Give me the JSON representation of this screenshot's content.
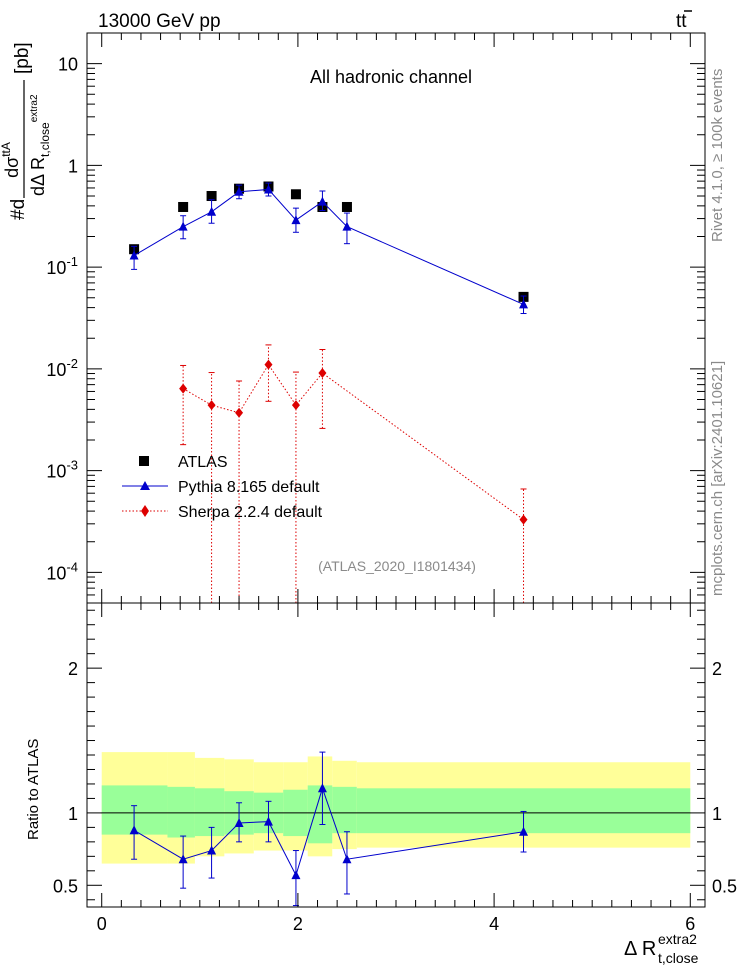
{
  "header": {
    "energy_label": "13000 GeV pp",
    "process_label": "tt̄",
    "rivet_label": "Rivet 4.1.0, ≥ 100k events",
    "mcplots_label": "mcplots.cern.ch [arXiv:2401.10621]"
  },
  "main_panel": {
    "title": "All hadronic channel",
    "analysis_label": "(ATLAS_2020_I1801434)",
    "ylabel_numerator": "#d dσ^ttA",
    "ylabel_text": "dσ / dΔR_t,close^extra2 [pb]",
    "legend": {
      "atlas": "ATLAS",
      "pythia": "Pythia 8.165 default",
      "sherpa": "Sherpa 2.2.4 default"
    }
  },
  "ratio_panel": {
    "ylabel": "Ratio to ATLAS"
  },
  "xaxis": {
    "label_main": "Δ R",
    "label_sup": "extra2",
    "label_sub": "t,close"
  },
  "colors": {
    "atlas": "#000000",
    "pythia": "#0000cc",
    "sherpa": "#dd0000",
    "band_inner": "#99ff99",
    "band_outer": "#ffff99"
  },
  "chart_data": [
    {
      "type": "scatter",
      "panel": "main",
      "yscale": "log",
      "xlim": [
        -0.15,
        6.15
      ],
      "ylim": [
        5e-05,
        20
      ],
      "ytick_labels": [
        "10^-4",
        "10^-3",
        "10^-2",
        "10^-1",
        "1",
        "10"
      ],
      "xlabel": "Δ R t,close extra2",
      "series": [
        {
          "name": "ATLAS",
          "marker": "square",
          "x": [
            0.33,
            0.83,
            1.12,
            1.4,
            1.7,
            1.98,
            2.25,
            2.5,
            4.3
          ],
          "y": [
            0.15,
            0.39,
            0.5,
            0.59,
            0.62,
            0.52,
            0.39,
            0.39,
            0.051
          ]
        },
        {
          "name": "Pythia 8.165 default",
          "marker": "triangle",
          "x": [
            0.33,
            0.83,
            1.12,
            1.4,
            1.7,
            1.98,
            2.25,
            2.5,
            4.3
          ],
          "y": [
            0.13,
            0.25,
            0.35,
            0.55,
            0.58,
            0.29,
            0.44,
            0.25,
            0.043
          ],
          "yerr_low": [
            0.095,
            0.19,
            0.27,
            0.47,
            0.5,
            0.22,
            0.36,
            0.17,
            0.035
          ],
          "yerr_high": [
            0.16,
            0.32,
            0.46,
            0.64,
            0.67,
            0.38,
            0.56,
            0.34,
            0.052
          ]
        },
        {
          "name": "Sherpa 2.2.4 default",
          "marker": "diamond",
          "x": [
            0.83,
            1.12,
            1.4,
            1.7,
            1.98,
            2.25,
            4.3
          ],
          "y": [
            0.0064,
            0.0044,
            0.0037,
            0.011,
            0.0044,
            0.0091,
            0.00033
          ],
          "yerr_low": [
            0.0018,
            1e-05,
            1e-05,
            0.0048,
            1e-05,
            0.0026,
            1e-05
          ],
          "yerr_high": [
            0.0108,
            0.0092,
            0.0076,
            0.0172,
            0.0093,
            0.0155,
            0.00066
          ]
        }
      ]
    },
    {
      "type": "line",
      "panel": "ratio",
      "ylabel": "Ratio to ATLAS",
      "ylim": [
        0.35,
        2.45
      ],
      "yticks": [
        0.5,
        1,
        2
      ],
      "ytick_labels": [
        "0.5",
        "1",
        "2"
      ],
      "xlim": [
        -0.15,
        6.15
      ],
      "xticks": [
        0,
        2,
        4,
        6
      ],
      "xtick_labels": [
        "0",
        "2",
        "4",
        "6"
      ],
      "bins": [
        0,
        0.67,
        0.95,
        1.25,
        1.55,
        1.85,
        2.1,
        2.35,
        2.6,
        6.0
      ],
      "band_inner_low": [
        0.85,
        0.83,
        0.84,
        0.85,
        0.86,
        0.84,
        0.79,
        0.86,
        0.86
      ],
      "band_inner_high": [
        1.19,
        1.18,
        1.17,
        1.15,
        1.14,
        1.16,
        1.19,
        1.18,
        1.17
      ],
      "band_outer_low": [
        0.65,
        0.65,
        0.7,
        0.72,
        0.74,
        0.74,
        0.7,
        0.75,
        0.76
      ],
      "band_outer_high": [
        1.42,
        1.42,
        1.38,
        1.37,
        1.35,
        1.35,
        1.39,
        1.36,
        1.35
      ],
      "series": [
        {
          "name": "Pythia 8.165 default",
          "x": [
            0.33,
            0.83,
            1.12,
            1.4,
            1.7,
            1.98,
            2.25,
            2.5,
            4.3
          ],
          "y": [
            0.88,
            0.68,
            0.74,
            0.93,
            0.94,
            0.57,
            1.17,
            0.68,
            0.87
          ],
          "yerr_low": [
            0.68,
            0.48,
            0.55,
            0.8,
            0.8,
            0.36,
            0.92,
            0.44,
            0.73
          ],
          "yerr_high": [
            1.05,
            0.84,
            0.9,
            1.07,
            1.08,
            0.74,
            1.42,
            0.87,
            1.01
          ]
        }
      ]
    }
  ]
}
